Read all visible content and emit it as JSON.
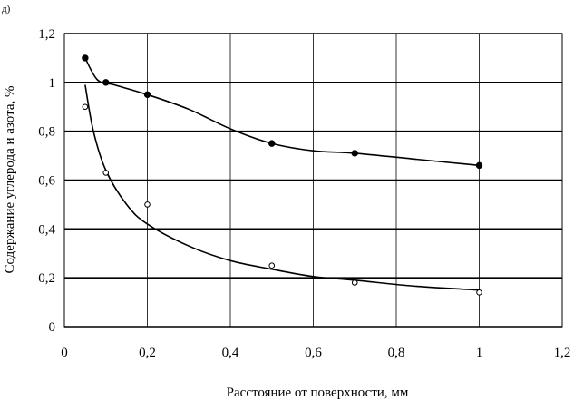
{
  "panel_label": "д)",
  "chart_data": {
    "type": "scatter",
    "xlabel": "Расстояние от  поверхности, мм",
    "ylabel": "Содержание углерода и азота, %",
    "xlim": [
      0,
      1.2
    ],
    "ylim": [
      0,
      1.2
    ],
    "x_ticks": [
      0,
      0.2,
      0.4,
      0.6,
      0.8,
      1,
      1.2
    ],
    "x_tick_labels": [
      "0",
      "0,2",
      "0,4",
      "0,6",
      "0,8",
      "1",
      "1,2"
    ],
    "y_ticks": [
      0,
      0.2,
      0.4,
      0.6,
      0.8,
      1,
      1.2
    ],
    "y_tick_labels": [
      "0",
      "0,2",
      "0,4",
      "0,6",
      "0,8",
      "1",
      "1,2"
    ],
    "grid": true,
    "legend": "none",
    "series": [
      {
        "marker": "filled-circle",
        "points": [
          {
            "x": 0.05,
            "y": 1.1
          },
          {
            "x": 0.1,
            "y": 1.0
          },
          {
            "x": 0.2,
            "y": 0.95
          },
          {
            "x": 0.5,
            "y": 0.75
          },
          {
            "x": 0.7,
            "y": 0.71
          },
          {
            "x": 1.0,
            "y": 0.66
          }
        ],
        "trend": [
          {
            "x": 0.05,
            "y": 1.1
          },
          {
            "x": 0.08,
            "y": 1.01
          },
          {
            "x": 0.12,
            "y": 0.99
          },
          {
            "x": 0.2,
            "y": 0.95
          },
          {
            "x": 0.3,
            "y": 0.89
          },
          {
            "x": 0.4,
            "y": 0.81
          },
          {
            "x": 0.5,
            "y": 0.75
          },
          {
            "x": 0.6,
            "y": 0.72
          },
          {
            "x": 0.7,
            "y": 0.71
          },
          {
            "x": 0.85,
            "y": 0.685
          },
          {
            "x": 1.0,
            "y": 0.66
          }
        ]
      },
      {
        "marker": "open-circle",
        "points": [
          {
            "x": 0.05,
            "y": 0.9
          },
          {
            "x": 0.1,
            "y": 0.63
          },
          {
            "x": 0.2,
            "y": 0.5
          },
          {
            "x": 0.5,
            "y": 0.25
          },
          {
            "x": 0.7,
            "y": 0.18
          },
          {
            "x": 1.0,
            "y": 0.14
          }
        ],
        "trend": [
          {
            "x": 0.05,
            "y": 0.99
          },
          {
            "x": 0.07,
            "y": 0.8
          },
          {
            "x": 0.1,
            "y": 0.64
          },
          {
            "x": 0.15,
            "y": 0.5
          },
          {
            "x": 0.2,
            "y": 0.42
          },
          {
            "x": 0.3,
            "y": 0.33
          },
          {
            "x": 0.4,
            "y": 0.27
          },
          {
            "x": 0.5,
            "y": 0.235
          },
          {
            "x": 0.6,
            "y": 0.205
          },
          {
            "x": 0.7,
            "y": 0.19
          },
          {
            "x": 0.85,
            "y": 0.165
          },
          {
            "x": 1.0,
            "y": 0.15
          }
        ]
      }
    ]
  }
}
